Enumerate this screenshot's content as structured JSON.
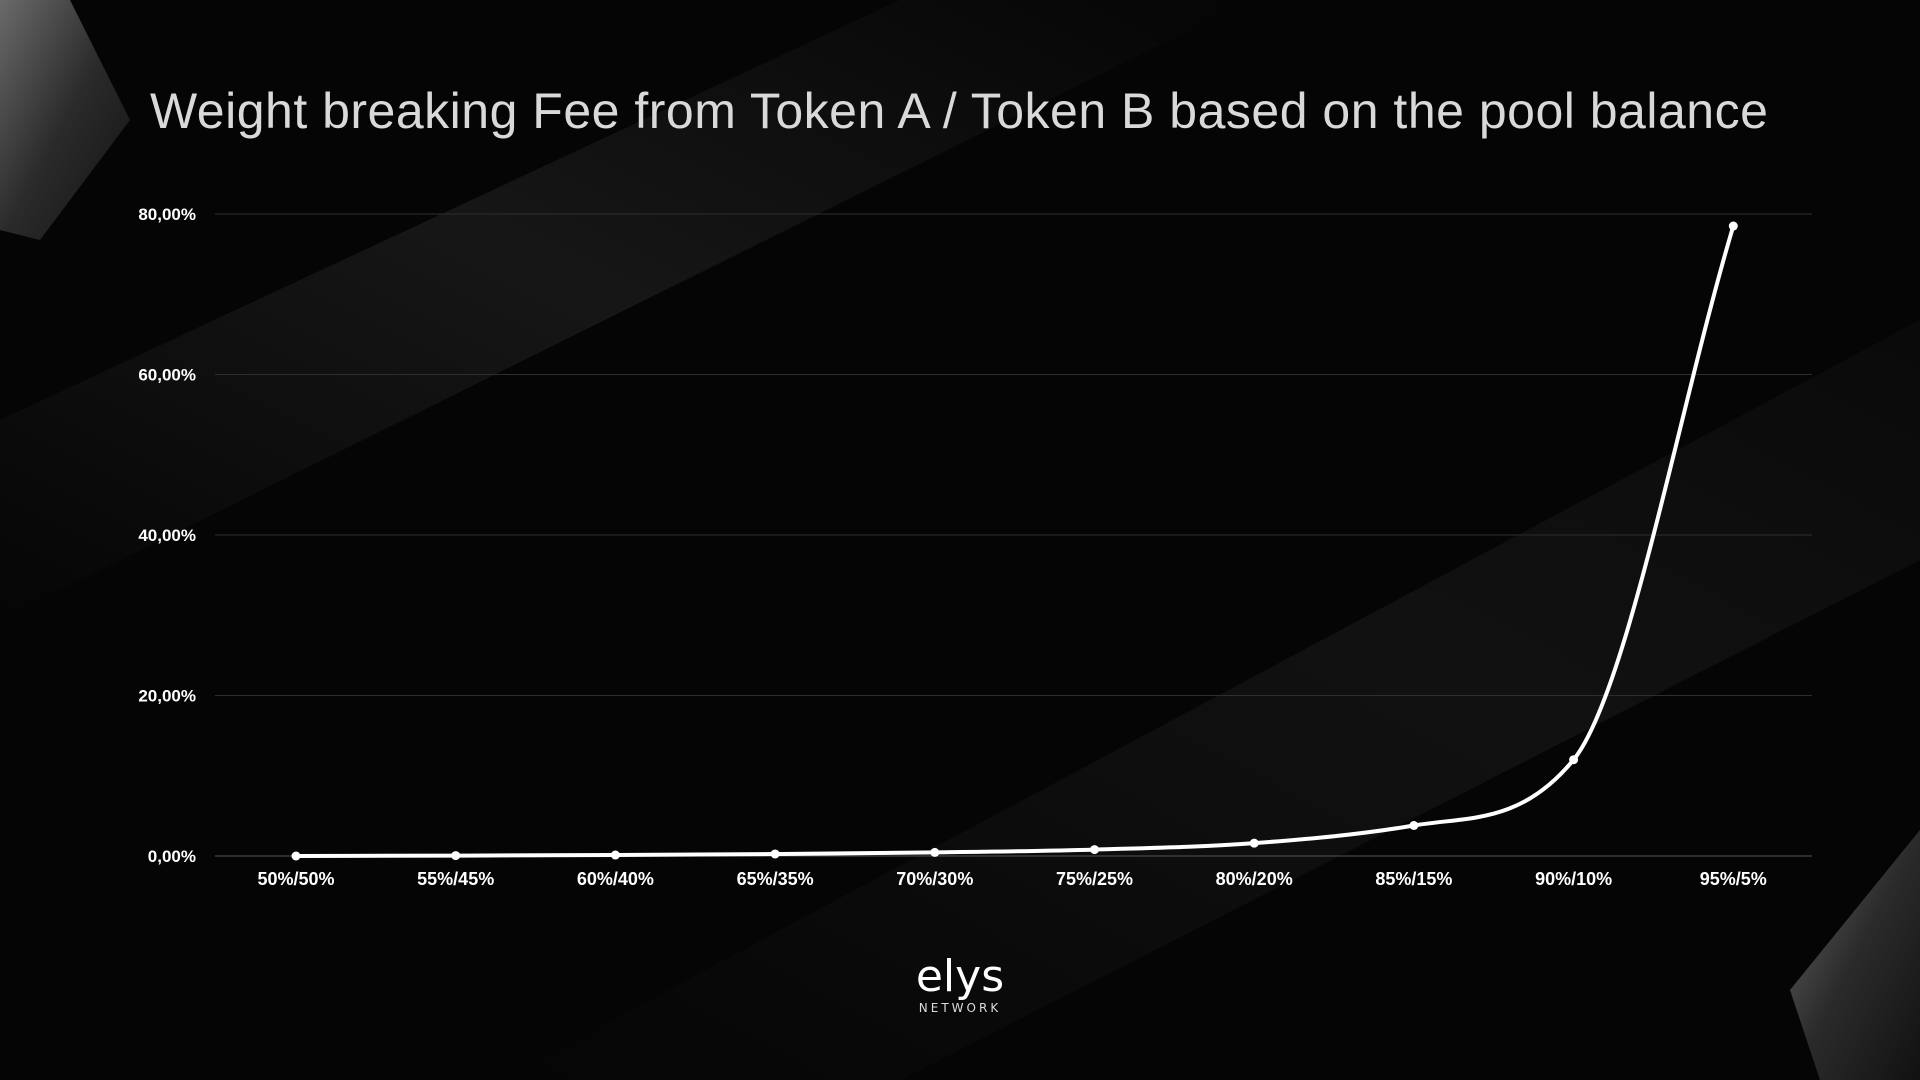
{
  "title": "Weight breaking Fee from Token A / Token B based on the pool balance",
  "logo": {
    "word": "elys",
    "sub": "NETWORK"
  },
  "colors": {
    "background": "#050505",
    "line": "#ffffff",
    "grid": "#2e2e2e",
    "title": "#d9d9d9"
  },
  "chart_data": {
    "type": "line",
    "title": "Weight breaking Fee from Token A / Token B based on the pool balance",
    "xlabel": "",
    "ylabel": "",
    "categories": [
      "50%/50%",
      "55%/45%",
      "60%/40%",
      "65%/35%",
      "70%/30%",
      "75%/25%",
      "80%/20%",
      "85%/15%",
      "90%/10%",
      "95%/5%"
    ],
    "series": [
      {
        "values": [
          0.0,
          0.05,
          0.12,
          0.25,
          0.45,
          0.8,
          1.6,
          3.8,
          12.0,
          78.5
        ]
      }
    ],
    "ylim": [
      0,
      80
    ],
    "yticks": [
      0,
      20,
      40,
      60,
      80
    ],
    "ytick_labels": [
      "0,00%",
      "20,00%",
      "40,00%",
      "60,00%",
      "80,00%"
    ],
    "grid": true,
    "legend": "none",
    "markers": true
  }
}
